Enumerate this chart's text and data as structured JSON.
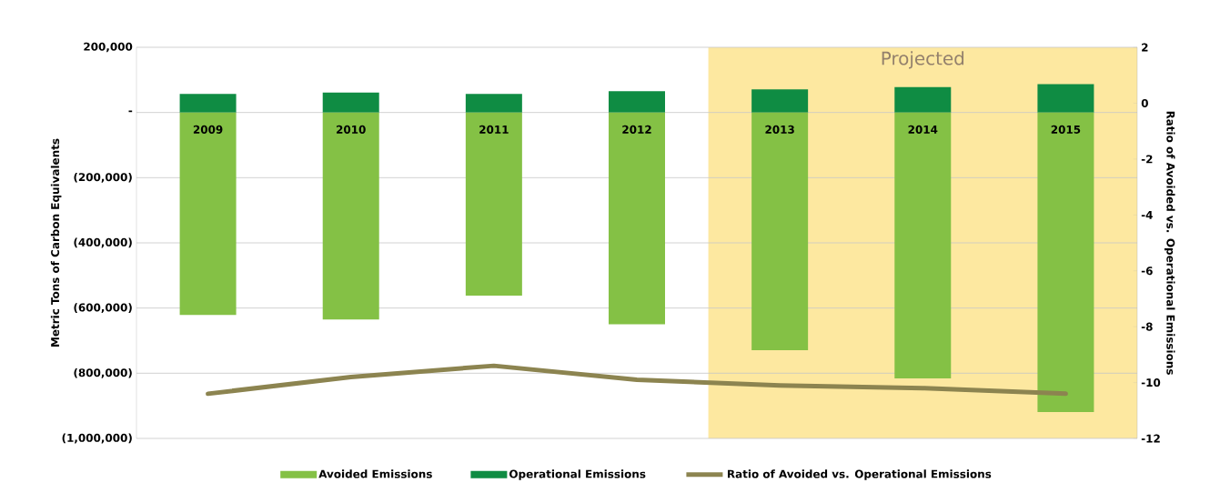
{
  "chart_data": {
    "type": "bar",
    "stacked": true,
    "categories": [
      "2009",
      "2010",
      "2011",
      "2012",
      "2013",
      "2014",
      "2015"
    ],
    "series": [
      {
        "name": "Avoided Emissions",
        "color": "#84c145",
        "values": [
          -621000,
          -635000,
          -562000,
          -650000,
          -729000,
          -816000,
          -919000
        ]
      },
      {
        "name": "Operational Emissions",
        "color": "#0f8c43",
        "values": [
          57000,
          61000,
          57000,
          65000,
          71000,
          78000,
          87000
        ]
      },
      {
        "name": "Ratio of Avoided vs. Operational Emissions",
        "type": "line",
        "axis": "y2",
        "color": "#8c8450",
        "values": [
          -10.4,
          -9.8,
          -9.4,
          -9.9,
          -10.1,
          -10.2,
          -10.4
        ]
      }
    ],
    "ylabel": "Metric Tons of Carbon Equivalents",
    "y2label": "Ratio of Avoided vs. Operational Emissions",
    "ylim": [
      -1000000,
      200000
    ],
    "yticks": [
      {
        "value": -1000000,
        "label": "(1,000,000)"
      },
      {
        "value": -800000,
        "label": "(800,000)"
      },
      {
        "value": -600000,
        "label": "(600,000)"
      },
      {
        "value": -400000,
        "label": "(400,000)"
      },
      {
        "value": -200000,
        "label": "(200,000)"
      },
      {
        "value": 0,
        "label": "-"
      },
      {
        "value": 200000,
        "label": "200,000"
      }
    ],
    "y2lim": [
      -12,
      2
    ],
    "y2ticks": [
      -12,
      -10,
      -8,
      -6,
      -4,
      -2,
      0,
      2
    ],
    "bands": [
      {
        "axis": "x",
        "from": "2013",
        "to": "2015",
        "label": "Projected",
        "color": "#fde8a0"
      }
    ],
    "grid": "y",
    "legend": "bottom"
  }
}
